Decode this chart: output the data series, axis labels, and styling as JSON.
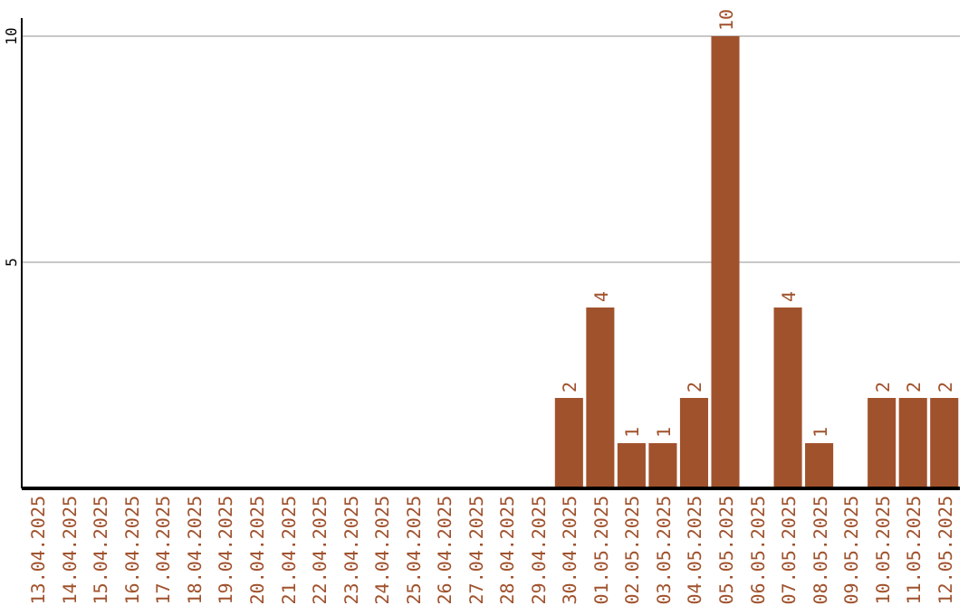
{
  "chart_data": {
    "type": "bar",
    "categories": [
      "13.04.2025",
      "14.04.2025",
      "15.04.2025",
      "16.04.2025",
      "17.04.2025",
      "18.04.2025",
      "19.04.2025",
      "20.04.2025",
      "21.04.2025",
      "22.04.2025",
      "23.04.2025",
      "24.04.2025",
      "25.04.2025",
      "26.04.2025",
      "27.04.2025",
      "28.04.2025",
      "29.04.2025",
      "30.04.2025",
      "01.05.2025",
      "02.05.2025",
      "03.05.2025",
      "04.05.2025",
      "05.05.2025",
      "06.05.2025",
      "07.05.2025",
      "08.05.2025",
      "09.05.2025",
      "10.05.2025",
      "11.05.2025",
      "12.05.2025"
    ],
    "values": [
      0,
      0,
      0,
      0,
      0,
      0,
      0,
      0,
      0,
      0,
      0,
      0,
      0,
      0,
      0,
      0,
      0,
      2,
      4,
      1,
      1,
      2,
      10,
      0,
      4,
      1,
      0,
      2,
      2,
      2
    ],
    "value_labels": [
      null,
      null,
      null,
      null,
      null,
      null,
      null,
      null,
      null,
      null,
      null,
      null,
      null,
      null,
      null,
      null,
      null,
      "2",
      "4",
      "1",
      "1",
      "2",
      "10",
      null,
      "4",
      "1",
      null,
      "2",
      "2",
      "2"
    ],
    "color": "#a0522d",
    "ylim": [
      0,
      10.4
    ],
    "yticks": [
      5,
      10
    ],
    "grid": "y"
  }
}
